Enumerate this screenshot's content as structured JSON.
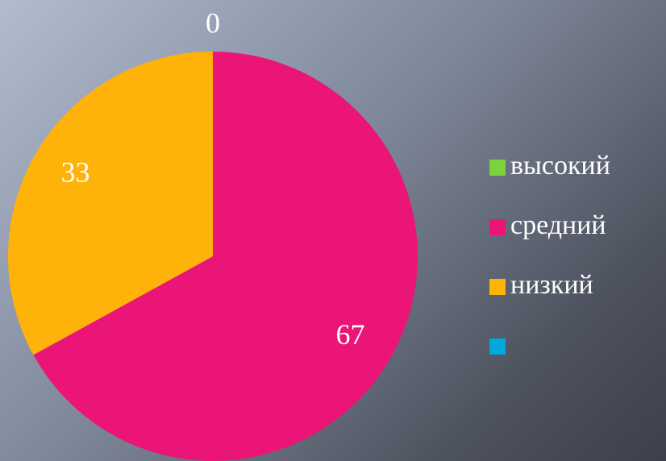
{
  "chart_data": {
    "type": "pie",
    "categories": [
      "высокий",
      "средний",
      "низкий",
      null
    ],
    "values": [
      0,
      67,
      33,
      null
    ],
    "colors": [
      "#7dd13c",
      "#ea1577",
      "#ffb30a",
      "#00a8dc"
    ],
    "legend": "right"
  }
}
